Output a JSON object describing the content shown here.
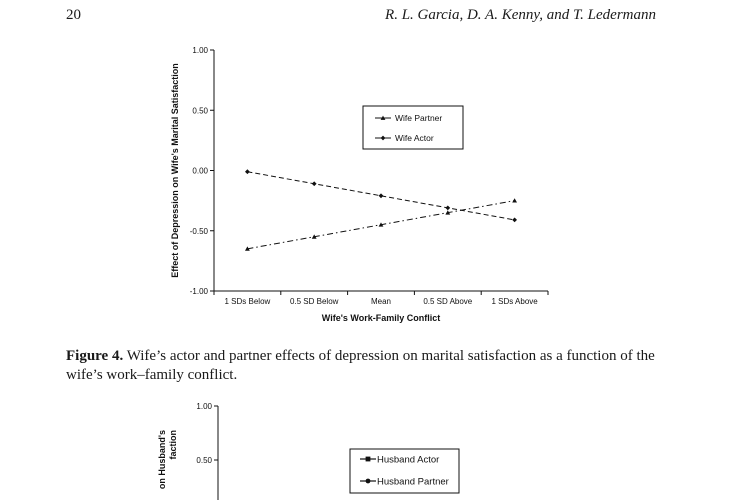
{
  "header": {
    "page_number": "20",
    "authors": "R. L. Garcia, D. A. Kenny, and T. Ledermann"
  },
  "figure4": {
    "caption_label": "Figure 4.",
    "caption_text": "Wife’s actor and partner effects of depression on marital satisfaction as a function of the wife’s work–family conflict."
  },
  "chart_data": [
    {
      "type": "line",
      "xlabel": "Wife's Work-Family Conflict",
      "ylabel": "Effect of Depression on Wife's Marital Satisfaction",
      "categories": [
        "1 SDs Below",
        "0.5 SD Below",
        "Mean",
        "0.5 SD Above",
        "1 SDs Above"
      ],
      "y_ticks": [
        "1.00",
        "0.50",
        "0.00",
        "-0.50",
        "-1.00"
      ],
      "ylim": [
        -1.0,
        1.0
      ],
      "legend_position": "top-right",
      "series": [
        {
          "name": "Wife Partner",
          "marker": "triangle",
          "dash": "dash-dot",
          "values": [
            -0.65,
            -0.55,
            -0.45,
            -0.35,
            -0.25
          ]
        },
        {
          "name": "Wife Actor",
          "marker": "diamond",
          "dash": "dashed",
          "values": [
            -0.01,
            -0.11,
            -0.21,
            -0.31,
            -0.41
          ]
        }
      ]
    },
    {
      "type": "line",
      "ylabel": "on Husband's\nfaction",
      "y_ticks": [
        "1.00",
        "0.50"
      ],
      "ylim": [
        -1.0,
        1.0
      ],
      "legend_position": "top-right",
      "series": [
        {
          "name": "Husband Actor",
          "marker": "square",
          "dash": "solid"
        },
        {
          "name": "Husband Partner",
          "marker": "circle",
          "dash": "solid"
        }
      ]
    }
  ]
}
